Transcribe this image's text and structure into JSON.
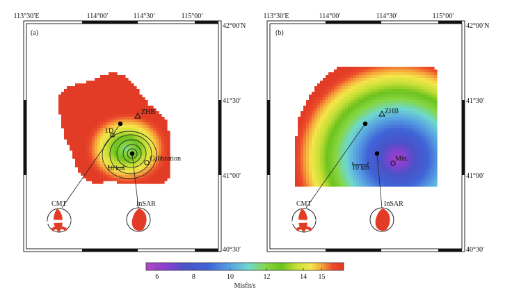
{
  "panels": [
    {
      "id": "a",
      "label": "(a)",
      "top_lon_labels": [
        "113°30′E",
        "114°00′",
        "114°30′",
        "115°00′"
      ],
      "right_lat_labels": [
        "42°00′N",
        "41°30′",
        "41°00′",
        "40°30′"
      ],
      "labels": {
        "station": "ZHB",
        "model_1d": "1D",
        "calibration": "Calibration",
        "scale": "10 km",
        "cmt": "CMT",
        "insar": "InSAR"
      }
    },
    {
      "id": "b",
      "label": "(b)",
      "top_lon_labels": [
        "113°30′E",
        "114°00′",
        "114°30′",
        "115°00′"
      ],
      "right_lat_labels": [
        "42°00′N",
        "41°30′",
        "41°00′",
        "40°30′"
      ],
      "labels": {
        "station": "ZHB",
        "minimum": "Min.",
        "scale": "10 km",
        "cmt": "CMT",
        "insar": "InSAR"
      }
    }
  ],
  "colorbar": {
    "title": "Misfit/s",
    "ticks": [
      "6",
      "8",
      "10",
      "12",
      "14",
      "15"
    ],
    "tick_values": [
      6,
      8,
      10,
      12,
      14,
      15
    ],
    "range": [
      5.4,
      16.2
    ],
    "stops": [
      {
        "value": 5.4,
        "color": "#b246c6"
      },
      {
        "value": 6.5,
        "color": "#8a3fd0"
      },
      {
        "value": 7.5,
        "color": "#4a52c8"
      },
      {
        "value": 8.8,
        "color": "#3f63d6"
      },
      {
        "value": 10.0,
        "color": "#58a3e2"
      },
      {
        "value": 11.0,
        "color": "#6fd8cf"
      },
      {
        "value": 12.0,
        "color": "#86d640"
      },
      {
        "value": 12.8,
        "color": "#6cc21d"
      },
      {
        "value": 13.6,
        "color": "#c4df35"
      },
      {
        "value": 14.4,
        "color": "#f5e64b"
      },
      {
        "value": 15.0,
        "color": "#f5a53a"
      },
      {
        "value": 15.6,
        "color": "#ec4c2a"
      },
      {
        "value": 16.2,
        "color": "#e23b26"
      }
    ]
  }
}
